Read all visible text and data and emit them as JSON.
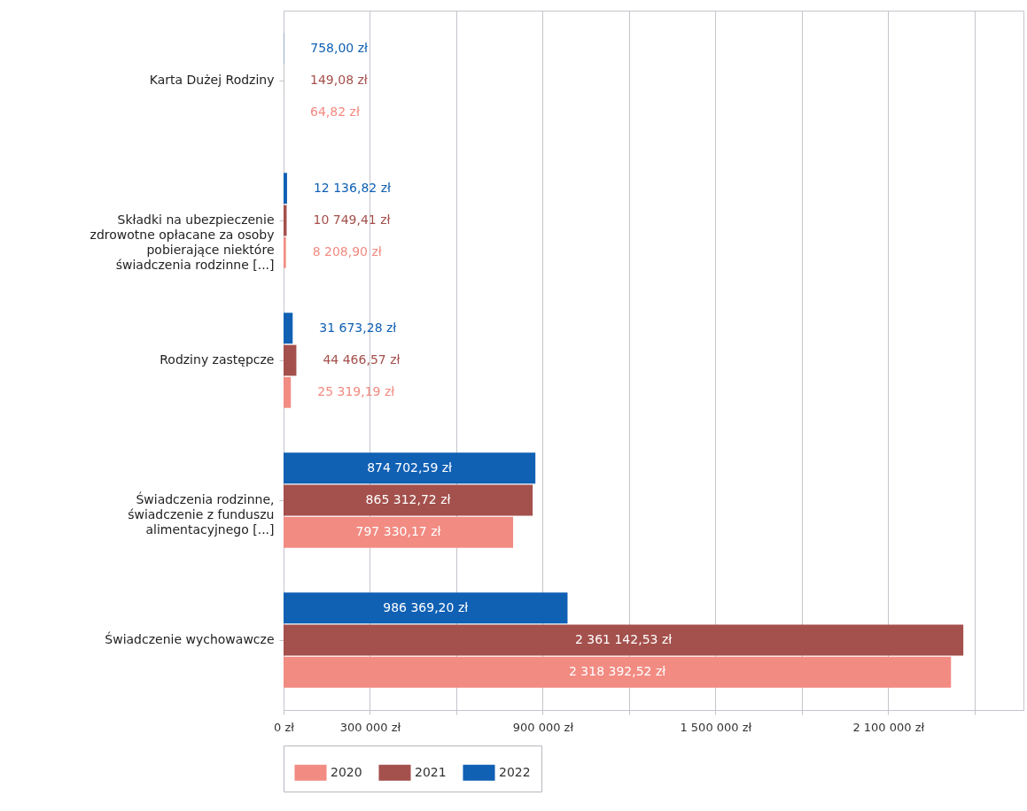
{
  "chart_data": {
    "type": "bar",
    "orientation": "horizontal",
    "categories": [
      "Karta Dużej Rodziny",
      "Składki na ubezpieczenie zdrowotne opłacane za osoby pobierające niektóre świadczenia rodzinne [...]",
      "Rodziny zastępcze",
      "Świadczenia rodzinne, świadczenie z funduszu alimentacyjnego [...]",
      "Świadczenie wychowawcze"
    ],
    "series": [
      {
        "name": "2020",
        "color": "#f28b82",
        "values": [
          64.82,
          8208.9,
          25319.19,
          797330.17,
          2318392.52
        ],
        "value_labels": [
          "64,82 zł",
          "8 208,90 zł",
          "25 319,19 zł",
          "797 330,17 zł",
          "2 318 392,52 zł"
        ]
      },
      {
        "name": "2021",
        "color": "#a4504c",
        "values": [
          149.08,
          10749.41,
          44466.57,
          865312.72,
          2361142.53
        ],
        "value_labels": [
          "149,08 zł",
          "10 749,41 zł",
          "44 466,57 zł",
          "865 312,72 zł",
          "2 361 142,53 zł"
        ]
      },
      {
        "name": "2022",
        "color": "#1060b4",
        "values": [
          758.0,
          12136.82,
          31673.28,
          874702.59,
          986369.2
        ],
        "value_labels": [
          "758,00 zł",
          "12 136,82 zł",
          "31 673,28 zł",
          "874 702,59 zł",
          "986 369,20 zł"
        ]
      }
    ],
    "xlim": [
      0,
      2570000
    ],
    "xticks": [
      {
        "value": 0,
        "label": "0 zł"
      },
      {
        "value": 300000,
        "label": "300 000 zł"
      },
      {
        "value": 600000,
        "label": null
      },
      {
        "value": 900000,
        "label": "900 000 zł"
      },
      {
        "value": 1200000,
        "label": null
      },
      {
        "value": 1500000,
        "label": "1 500 000 zł"
      },
      {
        "value": 1800000,
        "label": null
      },
      {
        "value": 2100000,
        "label": "2 100 000 zł"
      },
      {
        "value": 2400000,
        "label": null
      }
    ],
    "grid": "x",
    "legend": "bottom"
  }
}
